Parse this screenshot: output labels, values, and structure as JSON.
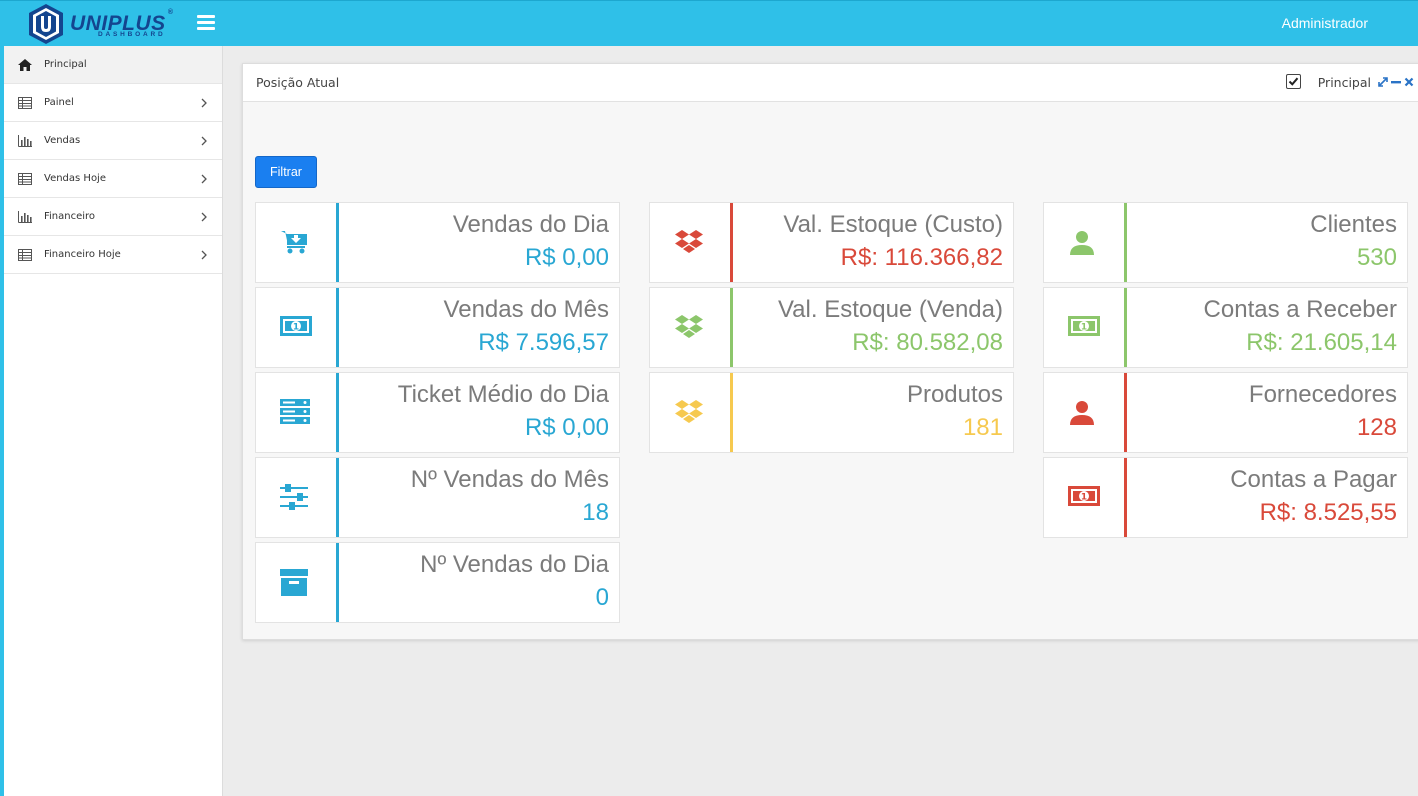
{
  "header": {
    "logo_text": "UNIPLUS",
    "logo_sub": "DASHBOARD",
    "user": "Administrador",
    "bg_color": "#2fc0e8"
  },
  "sidebar": {
    "items": [
      {
        "label": "Principal",
        "icon": "home-icon",
        "active": true
      },
      {
        "label": "Painel",
        "icon": "table-icon"
      },
      {
        "label": "Vendas",
        "icon": "bar-chart-icon"
      },
      {
        "label": "Vendas Hoje",
        "icon": "table-icon"
      },
      {
        "label": "Financeiro",
        "icon": "bar-chart-icon"
      },
      {
        "label": "Financeiro Hoje",
        "icon": "table-icon"
      }
    ]
  },
  "panel": {
    "title": "Posição Atual",
    "checkbox_label": "Principal",
    "checkbox_checked": true,
    "filter_button": "Filtrar"
  },
  "colors": {
    "blue": "#29a7d3",
    "red": "#d9493a",
    "green": "#8cc66b",
    "yellow": "#f6c94f"
  },
  "cards": {
    "col1": [
      {
        "label": "Vendas do Dia",
        "value": "R$ 0,00",
        "icon": "cart-download-icon",
        "color": "#29a7d3"
      },
      {
        "label": "Vendas do Mês",
        "value": "R$ 7.596,57",
        "icon": "money-icon",
        "color": "#29a7d3"
      },
      {
        "label": "Ticket Médio do Dia",
        "value": "R$ 0,00",
        "icon": "server-icon",
        "color": "#29a7d3"
      },
      {
        "label": "Nº Vendas do Mês",
        "value": "18",
        "icon": "sliders-icon",
        "color": "#29a7d3"
      },
      {
        "label": "Nº Vendas do Dia",
        "value": "0",
        "icon": "archive-icon",
        "color": "#29a7d3"
      }
    ],
    "col2": [
      {
        "label": "Val. Estoque (Custo)",
        "value": "R$: 116.366,82",
        "icon": "dropbox-icon",
        "color": "#d9493a"
      },
      {
        "label": "Val. Estoque (Venda)",
        "value": "R$: 80.582,08",
        "icon": "dropbox-icon",
        "color": "#8cc66b"
      },
      {
        "label": "Produtos",
        "value": "181",
        "icon": "dropbox-icon",
        "color": "#f6c94f"
      }
    ],
    "col3": [
      {
        "label": "Clientes",
        "value": "530",
        "icon": "user-icon",
        "color": "#8cc66b"
      },
      {
        "label": "Contas a Receber",
        "value": "R$: 21.605,14",
        "icon": "money-icon",
        "color": "#8cc66b"
      },
      {
        "label": "Fornecedores",
        "value": "128",
        "icon": "user-icon",
        "color": "#d9493a"
      },
      {
        "label": "Contas a Pagar",
        "value": "R$: 8.525,55",
        "icon": "money-icon",
        "color": "#d9493a"
      }
    ]
  }
}
